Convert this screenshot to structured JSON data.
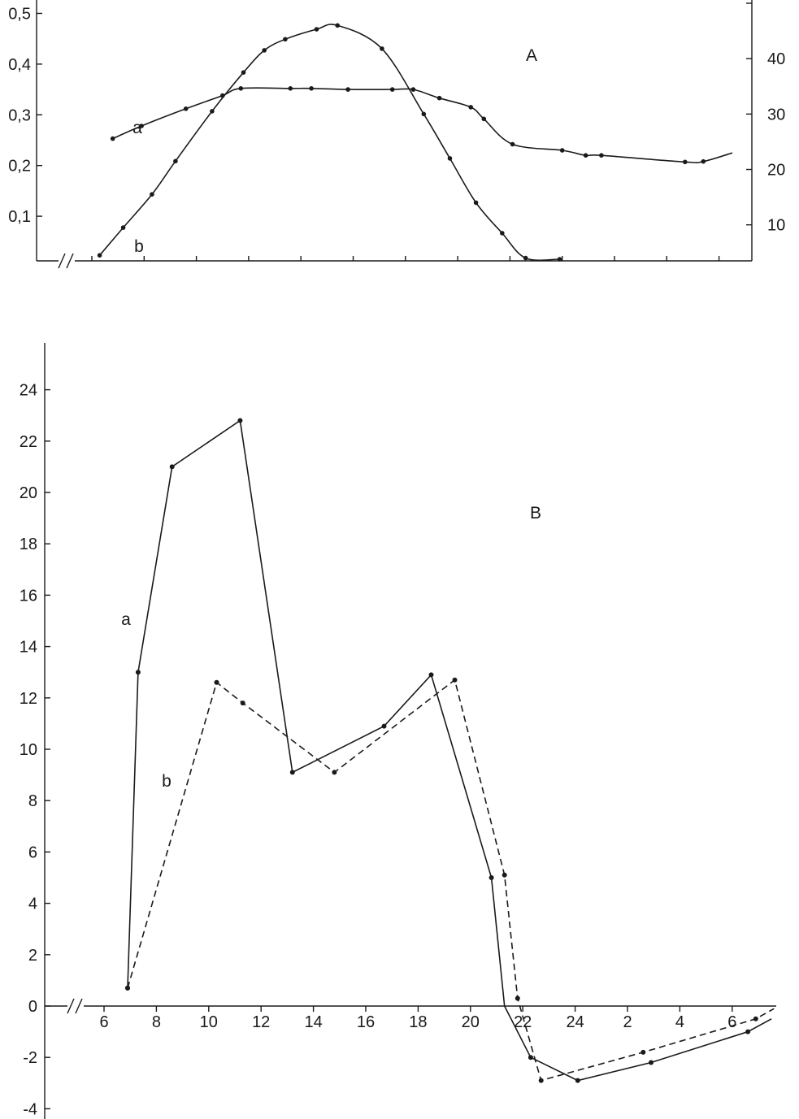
{
  "chart_data": [
    {
      "type": "line",
      "panel_label": "A",
      "series_labels": [
        "a",
        "b"
      ],
      "left_axis": {
        "ticks": [
          "0,1",
          "0,2",
          "0,3",
          "0,4",
          "0,5"
        ],
        "values": [
          0.1,
          0.2,
          0.3,
          0.4,
          0.5
        ],
        "ylim": [
          0.012,
          0.52
        ]
      },
      "right_axis": {
        "ticks": [
          "10",
          "20",
          "30",
          "40"
        ],
        "values": [
          10,
          20,
          30,
          40
        ],
        "ylim": [
          3.5,
          50
        ]
      },
      "x": {
        "tick_count": 13,
        "axis_break": true,
        "tick_labels": []
      },
      "series": [
        {
          "name": "a",
          "axis": "left",
          "x": [
            0.4,
            0.95,
            1.8,
            2.5,
            2.85,
            3.8,
            4.2,
            4.9,
            5.75,
            6.15,
            6.65,
            7.25,
            7.5,
            8.05,
            9.0,
            9.45,
            9.75,
            11.35,
            11.7,
            14.2
          ],
          "y": [
            0.253,
            0.278,
            0.312,
            0.338,
            0.352,
            0.352,
            0.352,
            0.35,
            0.35,
            0.35,
            0.333,
            0.315,
            0.292,
            0.242,
            0.23,
            0.22,
            0.22,
            0.207,
            0.208,
            0.237
          ]
        },
        {
          "name": "b",
          "axis": "right",
          "x": [
            0.15,
            0.6,
            1.15,
            1.6,
            2.3,
            2.9,
            3.3,
            3.7,
            4.3,
            4.7,
            5.55,
            6.35,
            6.85,
            7.35,
            7.85,
            8.3,
            8.95
          ],
          "y": [
            4.5,
            9.5,
            15.5,
            21.5,
            30.5,
            37.5,
            41.5,
            43.5,
            45.3,
            46.0,
            41.8,
            30.0,
            22.0,
            14.0,
            8.5,
            4.0,
            3.8
          ]
        }
      ]
    },
    {
      "type": "line",
      "panel_label": "B",
      "series_labels": [
        "a",
        "b"
      ],
      "y": {
        "ticks": [
          "-4",
          "-2",
          "0",
          "2",
          "4",
          "6",
          "8",
          "10",
          "12",
          "14",
          "16",
          "18",
          "20",
          "22",
          "24"
        ],
        "ylim": [
          -4.3,
          26.5
        ]
      },
      "x": {
        "tick_labels": [
          "6",
          "8",
          "10",
          "12",
          "14",
          "16",
          "18",
          "20",
          "22",
          "24",
          "2",
          "4",
          "6"
        ],
        "axis_break": true,
        "xlim": [
          3,
          32.5
        ]
      },
      "series": [
        {
          "name": "a",
          "style": "solid",
          "x": [
            6.9,
            7.3,
            8.6,
            11.2,
            13.2,
            16.7,
            18.5,
            20.8,
            21.3,
            22.3,
            24.1,
            26.9,
            30.6,
            31.5
          ],
          "y": [
            0.7,
            13.0,
            21.0,
            22.8,
            9.1,
            10.9,
            12.9,
            5.0,
            0.0,
            -2.0,
            -2.9,
            -2.2,
            -1.0,
            -0.5
          ],
          "markers": [
            true,
            true,
            true,
            true,
            true,
            true,
            true,
            true,
            false,
            true,
            true,
            true,
            true,
            false
          ]
        },
        {
          "name": "b",
          "style": "dashed",
          "x": [
            6.9,
            10.3,
            11.3,
            14.8,
            19.4,
            21.3,
            21.8,
            22.7,
            26.6,
            30.9,
            31.6
          ],
          "y": [
            0.7,
            12.6,
            11.8,
            9.1,
            12.7,
            5.1,
            0.3,
            -2.9,
            -1.8,
            -0.5,
            -0.1
          ],
          "markers": [
            true,
            true,
            true,
            true,
            true,
            true,
            true,
            true,
            true,
            true,
            false
          ]
        }
      ]
    }
  ]
}
